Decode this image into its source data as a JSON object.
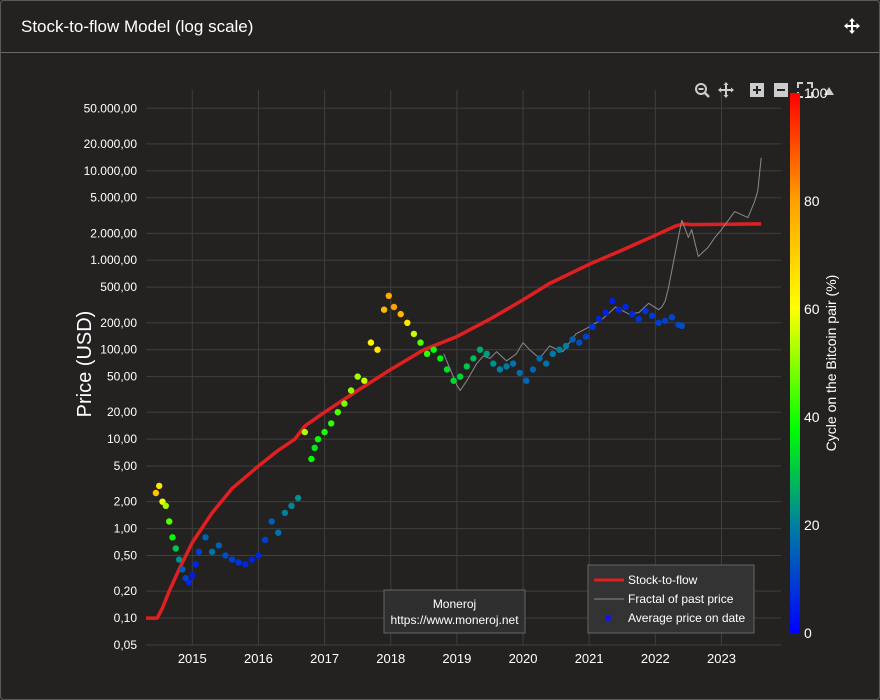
{
  "card": {
    "title": "Stock-to-flow Model (log scale)",
    "move_icon": "move-arrows-icon"
  },
  "toolbar": {
    "icons": [
      "zoom-icon",
      "pan-icon",
      "zoom-in-icon",
      "zoom-out-icon",
      "autoscale-icon",
      "reset-axes-icon"
    ]
  },
  "watermark": {
    "line1": "Moneroj",
    "line2": "https://www.moneroj.net"
  },
  "chart_data": {
    "type": "scatter",
    "ylabel": "Price (USD)",
    "yscale": "log",
    "ylim": [
      0.05,
      80000
    ],
    "xlim": [
      2014.3,
      2023.9
    ],
    "y_ticks": [
      {
        "v": 50000,
        "label": "50.000,00"
      },
      {
        "v": 20000,
        "label": "20.000,00"
      },
      {
        "v": 10000,
        "label": "10.000,00"
      },
      {
        "v": 5000,
        "label": "5.000,00"
      },
      {
        "v": 2000,
        "label": "2.000,00"
      },
      {
        "v": 1000,
        "label": "1.000,00"
      },
      {
        "v": 500,
        "label": "500,00"
      },
      {
        "v": 200,
        "label": "200,00"
      },
      {
        "v": 100,
        "label": "100,00"
      },
      {
        "v": 50,
        "label": "50,00"
      },
      {
        "v": 20,
        "label": "20,00"
      },
      {
        "v": 10,
        "label": "10,00"
      },
      {
        "v": 5,
        "label": "5,00"
      },
      {
        "v": 2,
        "label": "2,00"
      },
      {
        "v": 1,
        "label": "1,00"
      },
      {
        "v": 0.5,
        "label": "0,50"
      },
      {
        "v": 0.2,
        "label": "0,20"
      },
      {
        "v": 0.1,
        "label": "0,10"
      },
      {
        "v": 0.05,
        "label": "0,05"
      }
    ],
    "x_ticks": [
      {
        "v": 2015,
        "label": "2015"
      },
      {
        "v": 2016,
        "label": "2016"
      },
      {
        "v": 2017,
        "label": "2017"
      },
      {
        "v": 2018,
        "label": "2018"
      },
      {
        "v": 2019,
        "label": "2019"
      },
      {
        "v": 2020,
        "label": "2020"
      },
      {
        "v": 2021,
        "label": "2021"
      },
      {
        "v": 2022,
        "label": "2022"
      },
      {
        "v": 2023,
        "label": "2023"
      }
    ],
    "colorbar": {
      "title": "Cycle on the Bitcoin pair (%)",
      "range": [
        0,
        100
      ],
      "ticks": [
        {
          "v": 0,
          "label": "0"
        },
        {
          "v": 20,
          "label": "20"
        },
        {
          "v": 40,
          "label": "40"
        },
        {
          "v": 60,
          "label": "60"
        },
        {
          "v": 80,
          "label": "80"
        },
        {
          "v": 100,
          "label": "100"
        }
      ]
    },
    "legend": {
      "position": "bottom-right",
      "items": [
        {
          "label": "Stock-to-flow",
          "symbol": "line",
          "color": "#e02020"
        },
        {
          "label": "Fractal of past price",
          "symbol": "thin-line",
          "color": "#8a8a8a"
        },
        {
          "label": "Average price on date",
          "symbol": "dot",
          "color": "#1010ff"
        }
      ]
    },
    "series": [
      {
        "name": "Stock-to-flow",
        "color": "#e02020",
        "x": [
          2014.3,
          2014.47,
          2014.55,
          2014.65,
          2014.8,
          2015.0,
          2015.3,
          2015.6,
          2016.0,
          2016.3,
          2016.55,
          2016.7,
          2017.0,
          2017.5,
          2018.0,
          2018.5,
          2019.0,
          2019.5,
          2020.0,
          2020.4,
          2021.0,
          2021.5,
          2022.0,
          2022.3,
          2022.42,
          2022.55,
          2023.6
        ],
        "y": [
          0.1,
          0.1,
          0.13,
          0.2,
          0.35,
          0.7,
          1.5,
          2.8,
          5,
          7.5,
          10,
          14,
          20,
          35,
          60,
          100,
          140,
          220,
          360,
          550,
          900,
          1300,
          1900,
          2400,
          2550,
          2500,
          2550
        ]
      },
      {
        "name": "Fractal of past price",
        "color": "#8a8a8a",
        "x": [
          2018.8,
          2018.9,
          2019.0,
          2019.05,
          2019.15,
          2019.3,
          2019.4,
          2019.5,
          2019.6,
          2019.75,
          2019.9,
          2020.0,
          2020.1,
          2020.25,
          2020.4,
          2020.6,
          2020.8,
          2021.0,
          2021.2,
          2021.4,
          2021.6,
          2021.75,
          2021.9,
          2022.05,
          2022.1,
          2022.15,
          2022.2,
          2022.3,
          2022.4,
          2022.5,
          2022.55,
          2022.65,
          2022.8,
          2022.9,
          2023.0,
          2023.2,
          2023.4,
          2023.5,
          2023.55,
          2023.6
        ],
        "y": [
          90,
          60,
          40,
          35,
          45,
          70,
          85,
          80,
          95,
          75,
          90,
          120,
          100,
          80,
          110,
          95,
          150,
          180,
          220,
          300,
          250,
          260,
          330,
          280,
          300,
          350,
          500,
          1200,
          2800,
          1800,
          2200,
          1100,
          1400,
          1800,
          2200,
          3500,
          3000,
          4500,
          6000,
          14000
        ]
      },
      {
        "name": "Average price on date",
        "color_by": "cycle",
        "x": [
          2014.45,
          2014.5,
          2014.55,
          2014.6,
          2014.65,
          2014.7,
          2014.75,
          2014.8,
          2014.85,
          2014.9,
          2014.95,
          2015.0,
          2015.05,
          2015.1,
          2015.2,
          2015.3,
          2015.4,
          2015.5,
          2015.6,
          2015.7,
          2015.8,
          2015.9,
          2016.0,
          2016.1,
          2016.2,
          2016.3,
          2016.4,
          2016.5,
          2016.6,
          2016.7,
          2016.8,
          2016.85,
          2016.9,
          2017.0,
          2017.1,
          2017.2,
          2017.3,
          2017.4,
          2017.5,
          2017.6,
          2017.7,
          2017.8,
          2017.9,
          2017.97,
          2018.05,
          2018.15,
          2018.25,
          2018.35,
          2018.45,
          2018.55,
          2018.65,
          2018.75,
          2018.85,
          2018.95,
          2019.05,
          2019.15,
          2019.25,
          2019.35,
          2019.45,
          2019.55,
          2019.65,
          2019.75,
          2019.85,
          2019.95,
          2020.05,
          2020.15,
          2020.25,
          2020.35,
          2020.45,
          2020.55,
          2020.65,
          2020.75,
          2020.85,
          2020.95,
          2021.05,
          2021.15,
          2021.25,
          2021.35,
          2021.45,
          2021.55,
          2021.65,
          2021.75,
          2021.85,
          2021.95,
          2022.05,
          2022.15,
          2022.25,
          2022.35,
          2022.4
        ],
        "y": [
          2.5,
          3.0,
          2.0,
          1.8,
          1.2,
          0.8,
          0.6,
          0.45,
          0.35,
          0.28,
          0.25,
          0.3,
          0.4,
          0.55,
          0.8,
          0.55,
          0.65,
          0.5,
          0.45,
          0.42,
          0.4,
          0.45,
          0.5,
          0.75,
          1.2,
          0.9,
          1.5,
          1.8,
          2.2,
          12,
          6,
          8,
          10,
          12,
          15,
          20,
          25,
          35,
          50,
          45,
          120,
          100,
          280,
          400,
          300,
          250,
          200,
          150,
          120,
          90,
          100,
          80,
          60,
          45,
          50,
          65,
          80,
          100,
          90,
          70,
          60,
          65,
          70,
          55,
          45,
          60,
          80,
          70,
          90,
          100,
          110,
          130,
          120,
          140,
          180,
          220,
          260,
          350,
          280,
          300,
          250,
          220,
          270,
          240,
          200,
          210,
          230,
          190,
          185
        ],
        "cycle": [
          72,
          65,
          58,
          52,
          45,
          38,
          30,
          22,
          15,
          10,
          6,
          4,
          6,
          10,
          15,
          18,
          15,
          12,
          10,
          8,
          6,
          5,
          6,
          10,
          15,
          18,
          20,
          21,
          22,
          53,
          38,
          35,
          38,
          40,
          42,
          45,
          48,
          50,
          52,
          55,
          62,
          65,
          75,
          78,
          80,
          75,
          65,
          55,
          45,
          42,
          38,
          36,
          34,
          33,
          32,
          30,
          28,
          26,
          24,
          22,
          20,
          19,
          18,
          17,
          16,
          16,
          17,
          18,
          19,
          20,
          20,
          15,
          12,
          10,
          8,
          6,
          5,
          5,
          6,
          6,
          7,
          8,
          8,
          9,
          10,
          10,
          11,
          11,
          12
        ]
      }
    ]
  }
}
